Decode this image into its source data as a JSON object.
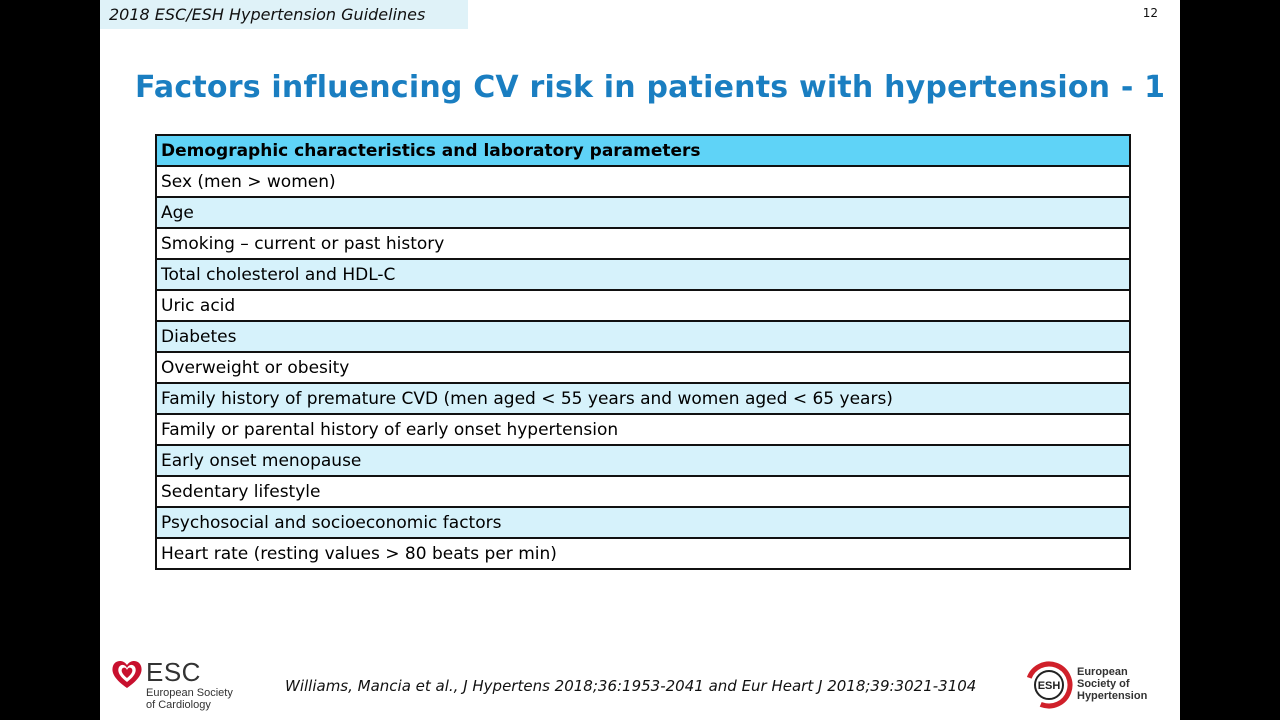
{
  "header": {
    "tag": "2018 ESC/ESH Hypertension Guidelines",
    "page_number": "12"
  },
  "title": "Factors influencing CV risk in patients with hypertension - 1",
  "table": {
    "header": "Demographic characteristics and laboratory parameters",
    "rows": [
      "Sex (men > women)",
      "Age",
      "Smoking – current or past history",
      "Total cholesterol  and HDL-C",
      "Uric acid",
      "Diabetes",
      "Overweight or obesity",
      "Family history of premature CVD (men aged < 55 years and women aged < 65 years)",
      "Family or parental history of early onset hypertension",
      "Early onset menopause",
      "Sedentary lifestyle",
      "Psychosocial and socioeconomic factors",
      "Heart rate (resting values > 80 beats per min)"
    ]
  },
  "footer": {
    "esc_logo": {
      "acronym": "ESC",
      "line1": "European Society",
      "line2": "of Cardiology"
    },
    "citation": "Williams, Mancia et al., J Hypertens 2018;36:1953-2041 and Eur Heart J 2018;39:3021-3104",
    "esh_logo": {
      "acronym": "ESH",
      "line1": "European",
      "line2": "Society of",
      "line3": "Hypertension"
    }
  },
  "colors": {
    "title": "#1a7ec1",
    "table_header": "#5fd3f7",
    "row_alt": "#d6f2fb",
    "header_tag_bg": "#dff2f8",
    "esc_red": "#c8102e",
    "esh_red": "#d0202a"
  }
}
